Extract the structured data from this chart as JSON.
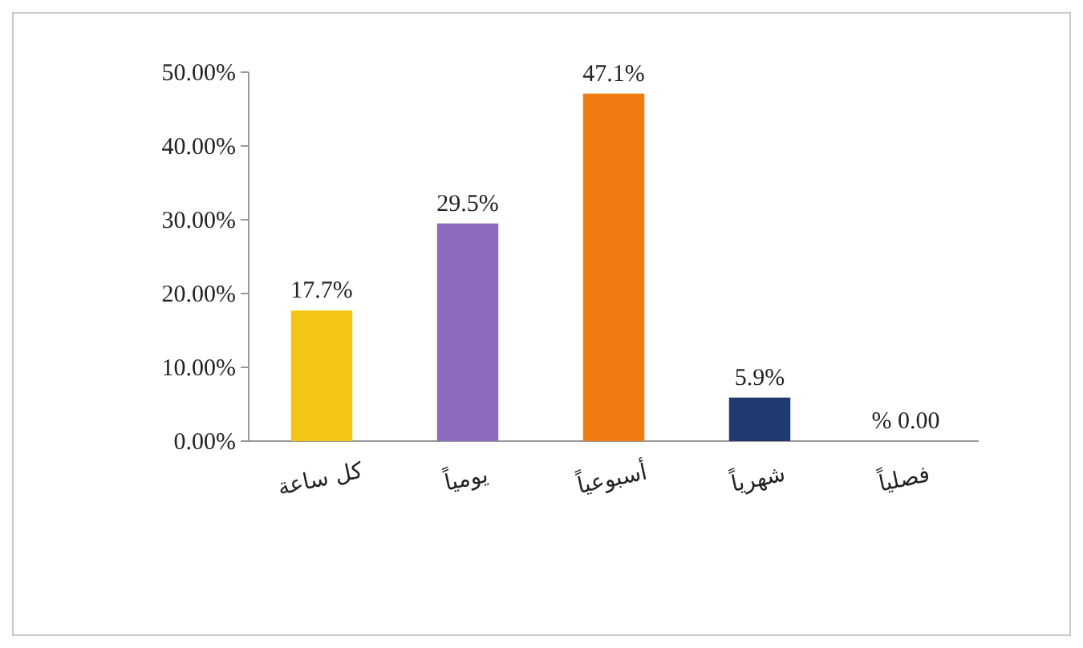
{
  "chart_data": {
    "type": "bar",
    "categories": [
      "كل ساعة",
      "يومياً",
      "أسبوعياً",
      "شهرياً",
      "فصلياً"
    ],
    "values": [
      17.7,
      29.5,
      47.1,
      5.9,
      0.0
    ],
    "value_labels": [
      "17.7%",
      "29.5%",
      "47.1%",
      "5.9%",
      "% 0.00"
    ],
    "colors": [
      "#f5c518",
      "#8e6bbf",
      "#f07b12",
      "#1f3a6e",
      "#8b0000"
    ],
    "ylim": [
      0,
      50
    ],
    "yticks": [
      {
        "value": 0,
        "label": "0.00%"
      },
      {
        "value": 10,
        "label": "10.00%"
      },
      {
        "value": 20,
        "label": "20.00%"
      },
      {
        "value": 30,
        "label": "30.00%"
      },
      {
        "value": 40,
        "label": "40.00%"
      },
      {
        "value": 50,
        "label": "50.00%"
      }
    ],
    "grid": false
  }
}
